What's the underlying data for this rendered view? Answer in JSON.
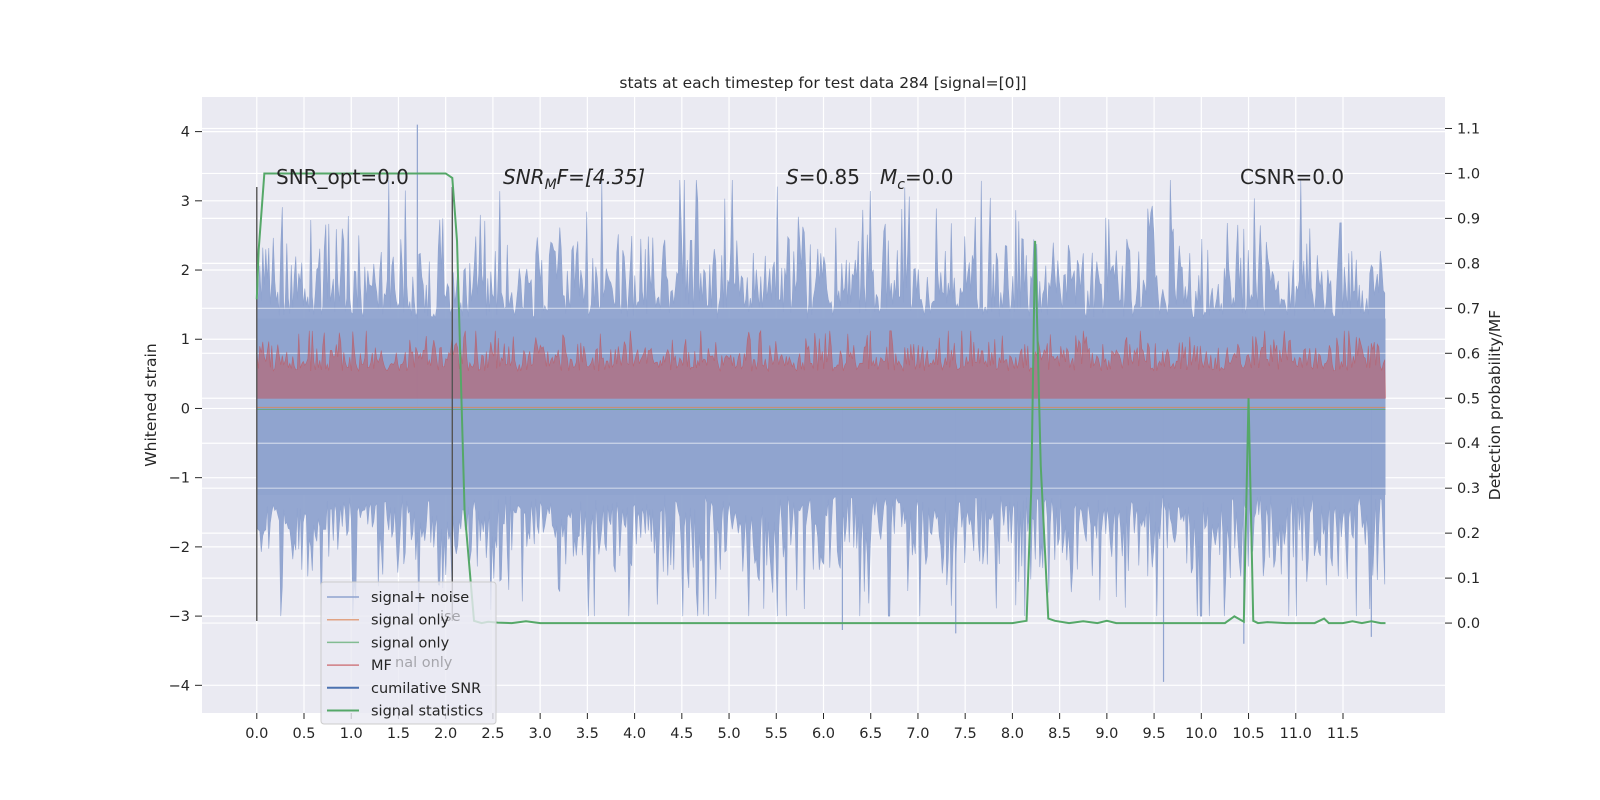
{
  "chart_data": {
    "type": "line",
    "title": "stats at each timestep for test data 284 [signal=[0]]",
    "ylabel_left": "Whitened strain",
    "ylabel_right": "Detection probability/MF",
    "x_ticks": [
      "0.0",
      "0.5",
      "1.0",
      "1.5",
      "2.0",
      "2.5",
      "3.0",
      "3.5",
      "4.0",
      "4.5",
      "5.0",
      "5.5",
      "6.0",
      "6.5",
      "7.0",
      "7.5",
      "8.0",
      "8.5",
      "9.0",
      "9.5",
      "10.0",
      "10.5",
      "11.0",
      "11.5"
    ],
    "x_tick_values": [
      0,
      0.5,
      1,
      1.5,
      2,
      2.5,
      3,
      3.5,
      4,
      4.5,
      5,
      5.5,
      6,
      6.5,
      7,
      7.5,
      8,
      8.5,
      9,
      9.5,
      10,
      10.5,
      11,
      11.5
    ],
    "xlim": [
      -0.58,
      12.58
    ],
    "ylim_left": [
      -4.4,
      4.5
    ],
    "yticks_left": [
      4,
      3,
      2,
      1,
      0,
      -1,
      -2,
      -3,
      -4
    ],
    "yticks_left_labels": [
      "4",
      "3",
      "2",
      "1",
      "0",
      "−1",
      "−2",
      "−3",
      "−4"
    ],
    "ylim_right": [
      -0.2,
      1.17
    ],
    "yticks_right": [
      1.1,
      1.0,
      0.9,
      0.8,
      0.7,
      0.6,
      0.5,
      0.4,
      0.3,
      0.2,
      0.1,
      0.0
    ],
    "yticks_right_labels": [
      "1.1",
      "1.0",
      "0.9",
      "0.8",
      "0.7",
      "0.6",
      "0.5",
      "0.4",
      "0.3",
      "0.2",
      "0.1",
      "0.0"
    ],
    "grid": true,
    "legend_position": "lower-left",
    "annotations": {
      "snr_opt": "SNR_opt=0.0",
      "snr_mf_main": "SNR",
      "snr_mf_sub": "M",
      "snr_mf_tail": "F=[4.35]",
      "s_main": "S",
      "s_tail": "=0.85",
      "mc_main": "M",
      "mc_sub": "c",
      "mc_tail": "=0.0",
      "csnr": "CSNR=0.0"
    },
    "vertical_markers": [
      0.0,
      2.07
    ],
    "noise": {
      "x_range": [
        0,
        11.95
      ],
      "envelope_upper": 1.3,
      "envelope_lower": -1.25,
      "max": 4.1,
      "min": -3.95
    },
    "mf": {
      "x_range": [
        0,
        11.95
      ],
      "base": 0.5,
      "level_range": [
        0.5,
        0.65
      ]
    },
    "signal_statistics": {
      "x": [
        0.0,
        0.02,
        0.08,
        0.2,
        0.5,
        1.0,
        1.5,
        1.9,
        2.0,
        2.07,
        2.12,
        2.2,
        2.3,
        2.38,
        2.45,
        2.55,
        2.7,
        2.85,
        3.0,
        3.5,
        4.0,
        5.0,
        6.0,
        7.0,
        7.5,
        8.0,
        8.15,
        8.2,
        8.24,
        8.3,
        8.38,
        8.45,
        8.6,
        8.75,
        8.9,
        9.0,
        9.1,
        9.3,
        9.6,
        9.9,
        10.2,
        10.25,
        10.35,
        10.45,
        10.5,
        10.55,
        10.6,
        10.7,
        10.9,
        11.2,
        11.3,
        11.35,
        11.5,
        11.6,
        11.7,
        11.8,
        11.9,
        11.95
      ],
      "y": [
        0.72,
        0.83,
        1.0,
        1.0,
        1.0,
        1.0,
        1.0,
        1.0,
        1.0,
        0.99,
        0.85,
        0.25,
        0.005,
        0.0,
        0.003,
        0.001,
        0.0,
        0.004,
        0.0,
        0.0,
        0.0,
        0.0,
        0.0,
        0.0,
        0.0,
        0.0,
        0.005,
        0.3,
        0.85,
        0.35,
        0.01,
        0.005,
        0.0,
        0.004,
        0.0,
        0.005,
        0.0,
        0.0,
        0.0,
        0.0,
        0.0,
        0.0,
        0.015,
        0.003,
        0.5,
        0.005,
        0.0,
        0.002,
        0.0,
        0.0,
        0.01,
        0.0,
        0.0,
        0.004,
        0.0,
        0.004,
        0.0,
        0.0
      ]
    },
    "series": [
      {
        "name": "signal+ noise",
        "color": "#8fa3cf"
      },
      {
        "name": "signal only",
        "color": "#dd8452"
      },
      {
        "name": "signal only",
        "color": "#55a868"
      },
      {
        "name": "MF",
        "color": "#c44e52"
      },
      {
        "name": "cumilative SNR",
        "color": "#4c72b0"
      },
      {
        "name": "signal statistics",
        "color": "#55a868"
      }
    ]
  }
}
